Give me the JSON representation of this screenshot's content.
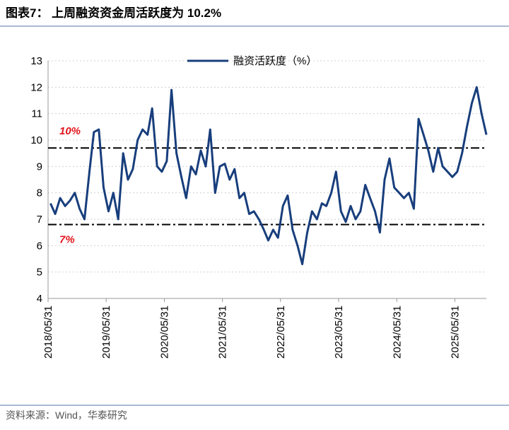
{
  "chart_data": {
    "type": "line",
    "title": "图表7： 上周融资资金周活跃度为 10.2%",
    "source": "资料来源：Wind，华泰研究",
    "x": [
      "2018/06/15",
      "2018/07/15",
      "2018/08/15",
      "2018/09/15",
      "2018/10/15",
      "2018/11/15",
      "2018/12/15",
      "2019/01/15",
      "2019/02/15",
      "2019/03/15",
      "2019/04/15",
      "2019/05/15",
      "2019/06/15",
      "2019/07/15",
      "2019/08/15",
      "2019/09/15",
      "2019/10/15",
      "2019/11/15",
      "2019/12/15",
      "2020/01/15",
      "2020/02/15",
      "2020/03/15",
      "2020/04/15",
      "2020/05/15",
      "2020/06/15",
      "2020/07/15",
      "2020/08/15",
      "2020/09/15",
      "2020/10/15",
      "2020/11/15",
      "2020/12/15",
      "2021/01/15",
      "2021/02/15",
      "2021/03/15",
      "2021/04/15",
      "2021/05/15",
      "2021/06/15",
      "2021/07/15",
      "2021/08/15",
      "2021/09/15",
      "2021/10/15",
      "2021/11/15",
      "2021/12/15",
      "2022/01/15",
      "2022/02/15",
      "2022/03/15",
      "2022/04/15",
      "2022/05/15",
      "2022/06/15",
      "2022/07/15",
      "2022/08/15",
      "2022/09/15",
      "2022/10/15",
      "2022/11/15",
      "2022/12/15",
      "2023/01/15",
      "2023/02/15",
      "2023/03/15",
      "2023/04/15",
      "2023/05/15",
      "2023/06/15",
      "2023/07/15",
      "2023/08/15",
      "2023/09/15",
      "2023/10/15",
      "2023/11/15",
      "2023/12/15",
      "2024/01/15",
      "2024/02/15",
      "2024/03/15",
      "2024/04/15",
      "2024/05/15",
      "2024/06/15",
      "2024/07/15",
      "2024/08/15",
      "2024/09/15",
      "2024/10/15",
      "2024/11/15",
      "2024/12/15",
      "2025/01/15",
      "2025/02/15",
      "2025/03/15",
      "2025/04/15",
      "2025/05/15",
      "2025/06/15",
      "2025/07/15",
      "2025/08/15",
      "2025/09/15",
      "2025/10/15",
      "2025/11/15",
      "2025/12/15"
    ],
    "series": [
      {
        "name": "融资活跃度（%）",
        "color": "#183e7c",
        "values": [
          7.6,
          7.2,
          7.8,
          7.5,
          7.7,
          8.0,
          7.4,
          7.0,
          8.8,
          10.3,
          10.4,
          8.2,
          7.3,
          8.0,
          7.0,
          9.5,
          8.5,
          8.9,
          10.0,
          10.4,
          10.2,
          11.2,
          9.0,
          8.8,
          9.2,
          11.9,
          9.5,
          8.6,
          7.8,
          9.0,
          8.7,
          9.6,
          9.0,
          10.4,
          8.0,
          9.0,
          9.1,
          8.5,
          8.9,
          7.8,
          8.0,
          7.2,
          7.3,
          7.0,
          6.6,
          6.2,
          6.6,
          6.3,
          7.5,
          7.9,
          6.6,
          6.0,
          5.3,
          6.5,
          7.3,
          7.0,
          7.6,
          7.5,
          8.0,
          8.8,
          7.3,
          6.9,
          7.5,
          7.0,
          7.3,
          8.3,
          7.8,
          7.3,
          6.5,
          8.5,
          9.3,
          8.2,
          8.0,
          7.8,
          8.0,
          7.4,
          10.8,
          10.2,
          9.6,
          8.8,
          9.7,
          9.0,
          8.8,
          8.6,
          8.8,
          9.5,
          10.5,
          11.4,
          12.0,
          11.0,
          10.2
        ]
      }
    ],
    "reference_lines": [
      9.7,
      6.8
    ],
    "annotations": [
      "10%",
      "7%"
    ],
    "xlim": [
      "2018/05/31",
      "2025/12/15"
    ],
    "xticks": [
      "2018/05/31",
      "2019/05/31",
      "2020/05/31",
      "2021/05/31",
      "2022/05/31",
      "2023/05/31",
      "2024/05/31",
      "2025/05/31"
    ],
    "ylim": [
      4,
      13
    ],
    "yticks": [
      4,
      5,
      6,
      7,
      8,
      9,
      10,
      11,
      12,
      13
    ],
    "grid": true
  }
}
